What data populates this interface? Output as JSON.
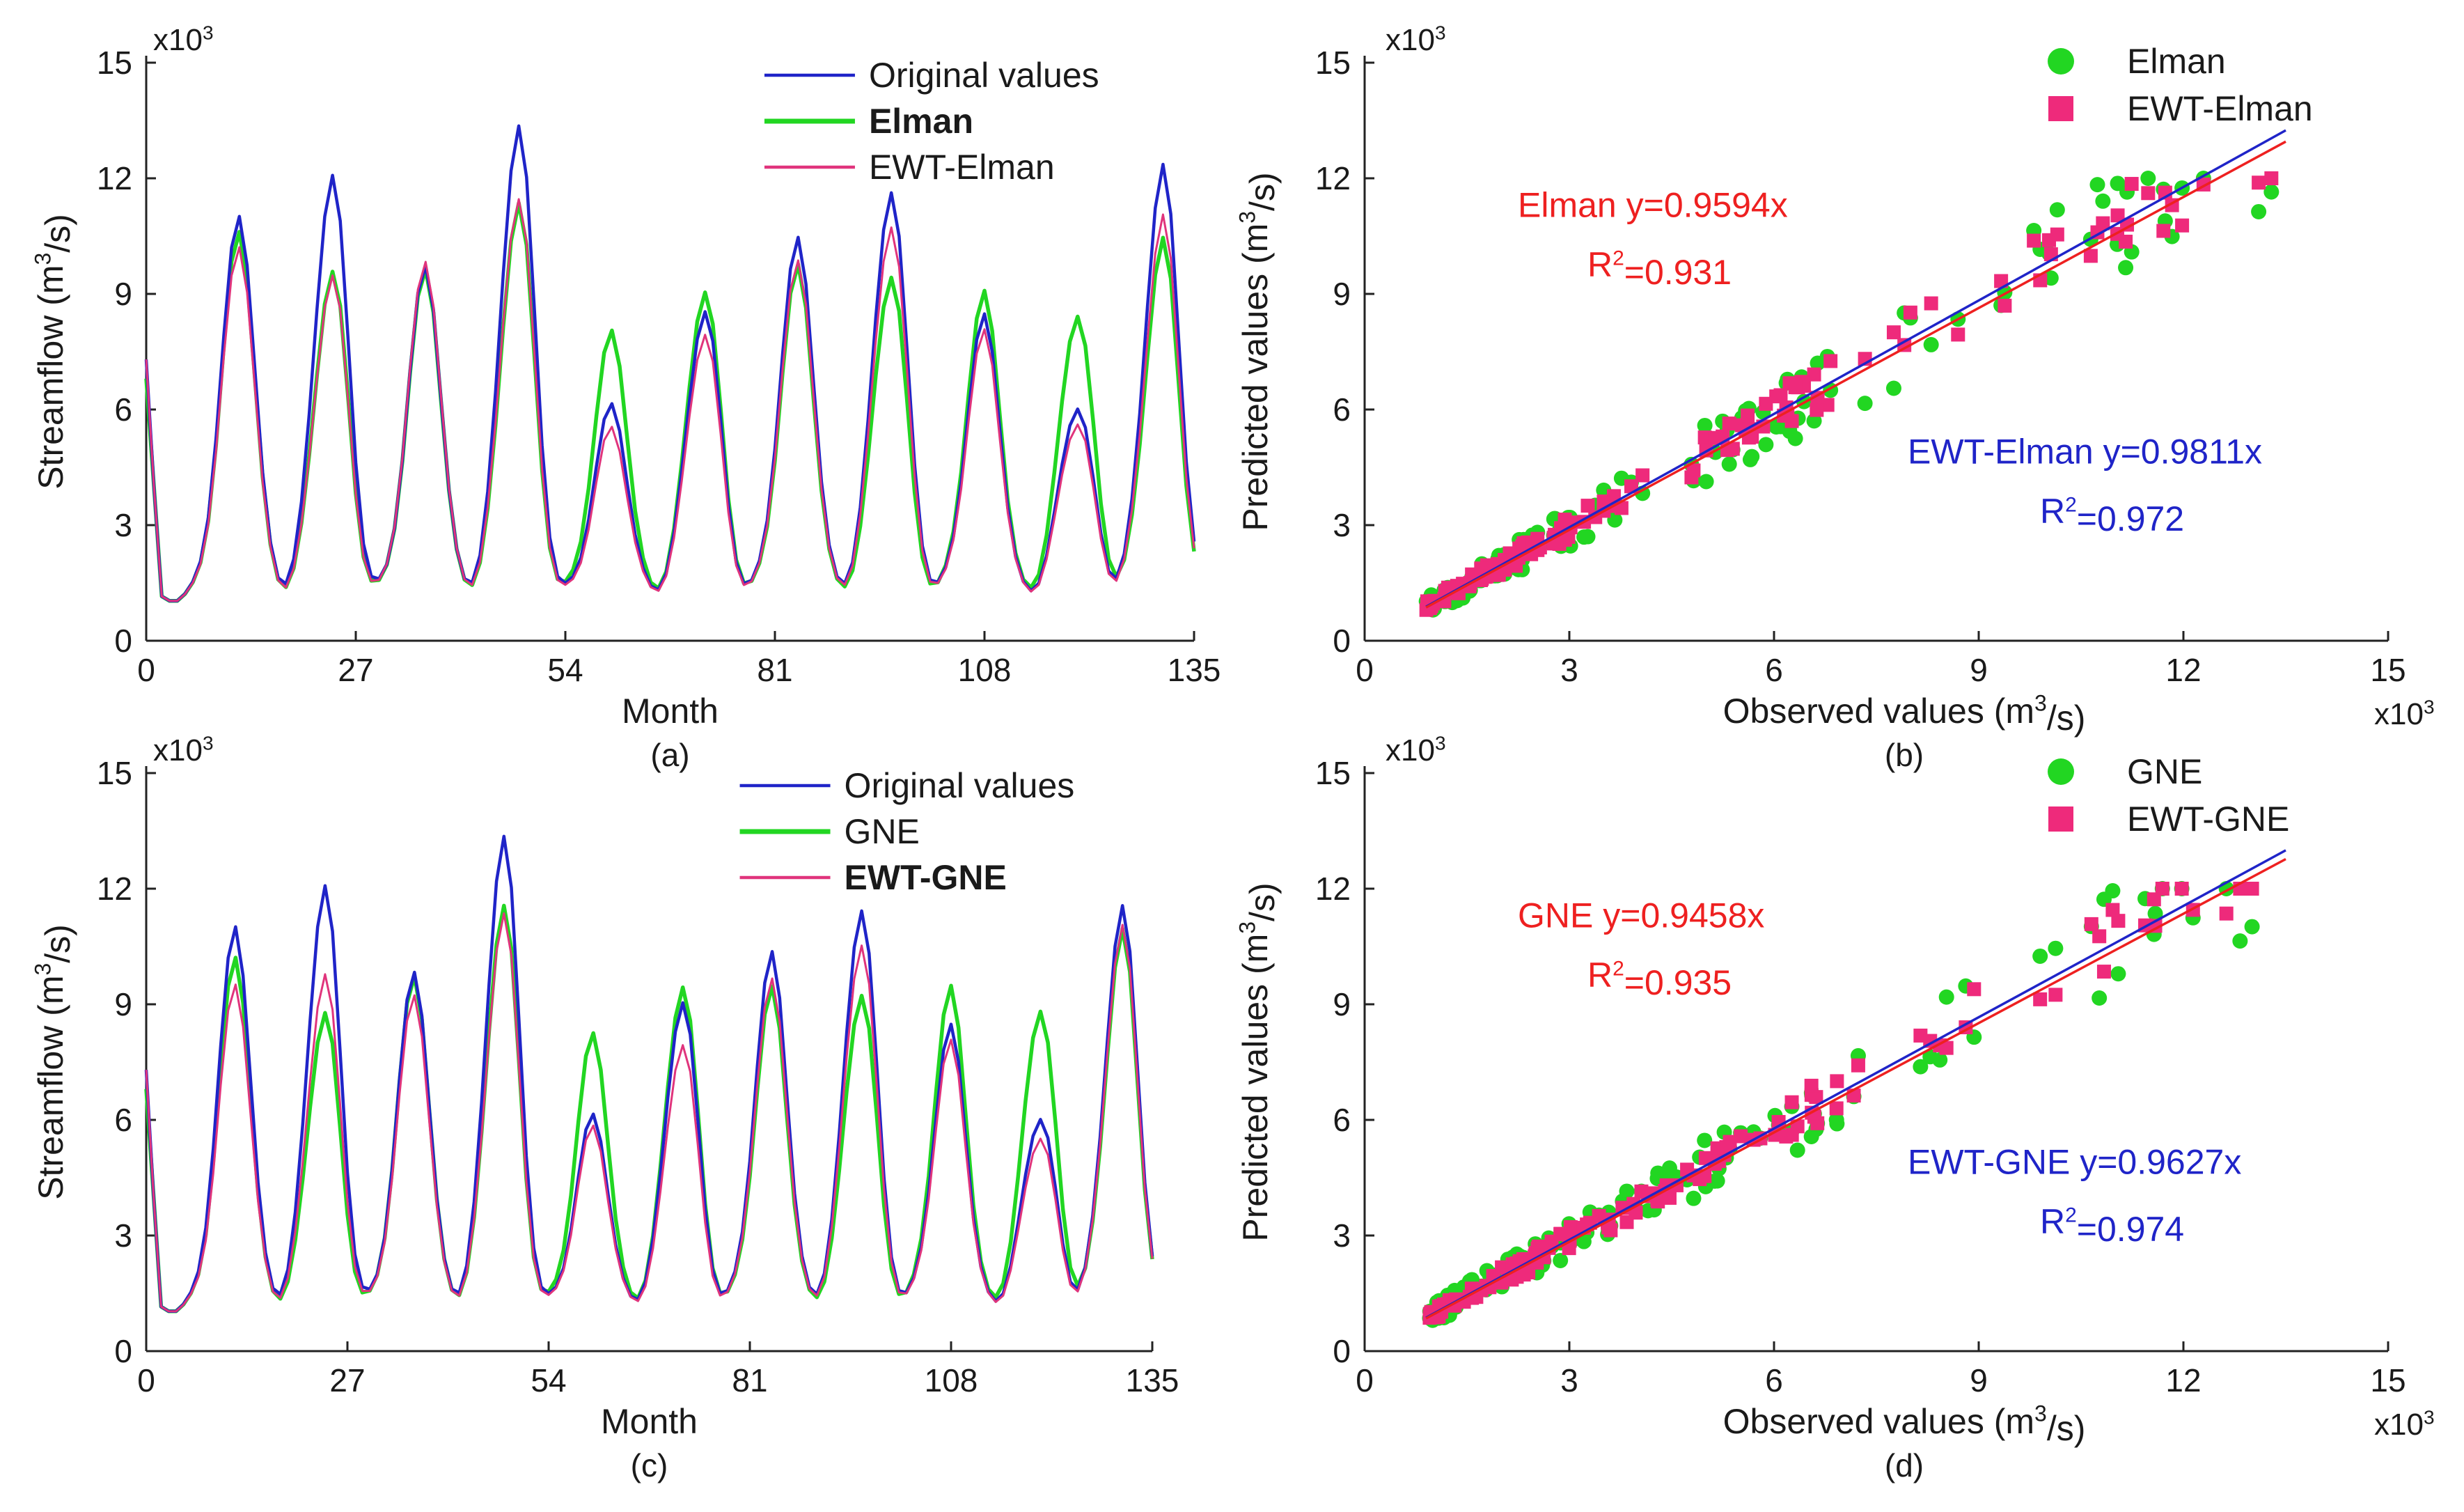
{
  "figure": {
    "panels": [
      "a",
      "b",
      "c",
      "d"
    ]
  },
  "chart_data": [
    {
      "id": "a",
      "type": "line",
      "caption": "(a)",
      "xlabel": "Month",
      "ylabel": "Streamflow (m³/s)",
      "ylabel_parts": [
        "Streamflow (m",
        "3",
        "/s)"
      ],
      "y_exponent": [
        "x10",
        "3"
      ],
      "xlim": [
        0,
        135
      ],
      "ylim": [
        0,
        15
      ],
      "xticks": [
        0,
        27,
        54,
        81,
        108,
        135
      ],
      "yticks": [
        0,
        3,
        6,
        9,
        12,
        15
      ],
      "peaks": [
        {
          "month": 12,
          "original": 11.0,
          "model": 10.6,
          "ewt": 10.2
        },
        {
          "month": 24,
          "original": 12.1,
          "model": 9.6,
          "ewt": 9.5
        },
        {
          "month": 36,
          "original": 9.7,
          "model": 9.6,
          "ewt": 9.8
        },
        {
          "month": 48,
          "original": 13.4,
          "model": 11.4,
          "ewt": 11.5
        },
        {
          "month": 60,
          "original": 6.1,
          "model": 8.0,
          "ewt": 5.5
        },
        {
          "month": 72,
          "original": 8.6,
          "model": 9.1,
          "ewt": 8.0
        },
        {
          "month": 84,
          "original": 10.4,
          "model": 9.7,
          "ewt": 9.8
        },
        {
          "month": 96,
          "original": 11.7,
          "model": 9.5,
          "ewt": 10.8
        },
        {
          "month": 108,
          "original": 8.4,
          "model": 9.0,
          "ewt": 8.0
        },
        {
          "month": 120,
          "original": 6.1,
          "model": 8.5,
          "ewt": 5.7
        },
        {
          "month": 131,
          "original": 12.3,
          "model": 10.4,
          "ewt": 11.0
        }
      ],
      "series": [
        {
          "name": "Original values",
          "color": "#1f24c8",
          "bold": false
        },
        {
          "name": "Elman",
          "color": "#22d622",
          "bold": true
        },
        {
          "name": "EWT-Elman",
          "color": "#e0347c",
          "bold": false
        }
      ]
    },
    {
      "id": "b",
      "type": "scatter",
      "caption": "(b)",
      "xlabel": "Observed values (m³/s)",
      "xlabel_parts": [
        "Observed values (m",
        "3",
        "/s)"
      ],
      "ylabel": "Predicted values (m³/s)",
      "ylabel_parts": [
        "Predicted values (m",
        "3",
        "/s)"
      ],
      "x_exponent": [
        "x10",
        "3"
      ],
      "y_exponent": [
        "x10",
        "3"
      ],
      "xlim": [
        0,
        15
      ],
      "ylim": [
        0,
        15
      ],
      "xticks": [
        0,
        3,
        6,
        9,
        12,
        15
      ],
      "yticks": [
        0,
        3,
        6,
        9,
        12,
        15
      ],
      "series": [
        {
          "name": "Elman",
          "color": "#22d622",
          "marker": "circle",
          "slope": 0.9594,
          "r2": 0.931,
          "equation": "Elman y=0.9594x",
          "r2_label": [
            "R",
            "2",
            "=0.931"
          ],
          "eq_color": "#ee2020"
        },
        {
          "name": "EWT-Elman",
          "color": "#ee2a7b",
          "marker": "square",
          "slope": 0.9811,
          "r2": 0.972,
          "equation": "EWT-Elman y=0.9811x",
          "r2_label": [
            "R",
            "2",
            "=0.972"
          ],
          "eq_color": "#1f24c8"
        }
      ],
      "fit_lines": [
        {
          "slope": 0.9811,
          "color": "#1f24c8"
        },
        {
          "slope": 0.9594,
          "color": "#ee2020"
        }
      ]
    },
    {
      "id": "c",
      "type": "line",
      "caption": "(c)",
      "xlabel": "Month",
      "ylabel": "Streamflow (m³/s)",
      "ylabel_parts": [
        "Streamflow (m",
        "3",
        "/s)"
      ],
      "y_exponent": [
        "x10",
        "3"
      ],
      "xlim": [
        0,
        135
      ],
      "ylim": [
        0,
        15
      ],
      "xticks": [
        0,
        27,
        54,
        81,
        108,
        135
      ],
      "yticks": [
        0,
        3,
        6,
        9,
        12,
        15
      ],
      "peaks": [
        {
          "month": 12,
          "original": 11.0,
          "model": 10.2,
          "ewt": 9.5
        },
        {
          "month": 24,
          "original": 12.1,
          "model": 8.8,
          "ewt": 9.8
        },
        {
          "month": 36,
          "original": 9.8,
          "model": 9.7,
          "ewt": 9.2
        },
        {
          "month": 48,
          "original": 13.4,
          "model": 11.6,
          "ewt": 11.4
        },
        {
          "month": 60,
          "original": 6.1,
          "model": 8.2,
          "ewt": 5.8
        },
        {
          "month": 72,
          "original": 9.1,
          "model": 9.5,
          "ewt": 8.0
        },
        {
          "month": 84,
          "original": 10.3,
          "model": 9.4,
          "ewt": 9.6
        },
        {
          "month": 96,
          "original": 11.5,
          "model": 9.3,
          "ewt": 10.6
        },
        {
          "month": 108,
          "original": 8.4,
          "model": 9.4,
          "ewt": 8.0
        },
        {
          "month": 120,
          "original": 6.1,
          "model": 8.9,
          "ewt": 5.6
        },
        {
          "month": 131,
          "original": 11.5,
          "model": 10.9,
          "ewt": 11.0
        }
      ],
      "series": [
        {
          "name": "Original values",
          "color": "#1f24c8",
          "bold": false
        },
        {
          "name": "GNE",
          "color": "#22d622",
          "bold": false
        },
        {
          "name": "EWT-GNE",
          "color": "#e0347c",
          "bold": true
        }
      ]
    },
    {
      "id": "d",
      "type": "scatter",
      "caption": "(d)",
      "xlabel": "Observed values (m³/s)",
      "xlabel_parts": [
        "Observed values (m",
        "3",
        "/s)"
      ],
      "ylabel": "Predicted values (m³/s)",
      "ylabel_parts": [
        "Predicted values (m",
        "3",
        "/s)"
      ],
      "x_exponent": [
        "x10",
        "3"
      ],
      "y_exponent": [
        "x10",
        "3"
      ],
      "xlim": [
        0,
        15
      ],
      "ylim": [
        0,
        15
      ],
      "xticks": [
        0,
        3,
        6,
        9,
        12,
        15
      ],
      "yticks": [
        0,
        3,
        6,
        9,
        12,
        15
      ],
      "series": [
        {
          "name": "GNE",
          "color": "#22d622",
          "marker": "circle",
          "slope": 0.9458,
          "r2": 0.935,
          "equation": "GNE y=0.9458x",
          "r2_label": [
            "R",
            "2",
            "=0.935"
          ],
          "eq_color": "#ee2020"
        },
        {
          "name": "EWT-GNE",
          "color": "#ee2a7b",
          "marker": "square",
          "slope": 0.9627,
          "r2": 0.974,
          "equation": "EWT-GNE y=0.9627x",
          "r2_label": [
            "R",
            "2",
            "=0.974"
          ],
          "eq_color": "#1f24c8"
        }
      ],
      "fit_lines": [
        {
          "slope": 0.9627,
          "color": "#1f24c8"
        },
        {
          "slope": 0.9458,
          "color": "#ee2020"
        }
      ]
    }
  ]
}
